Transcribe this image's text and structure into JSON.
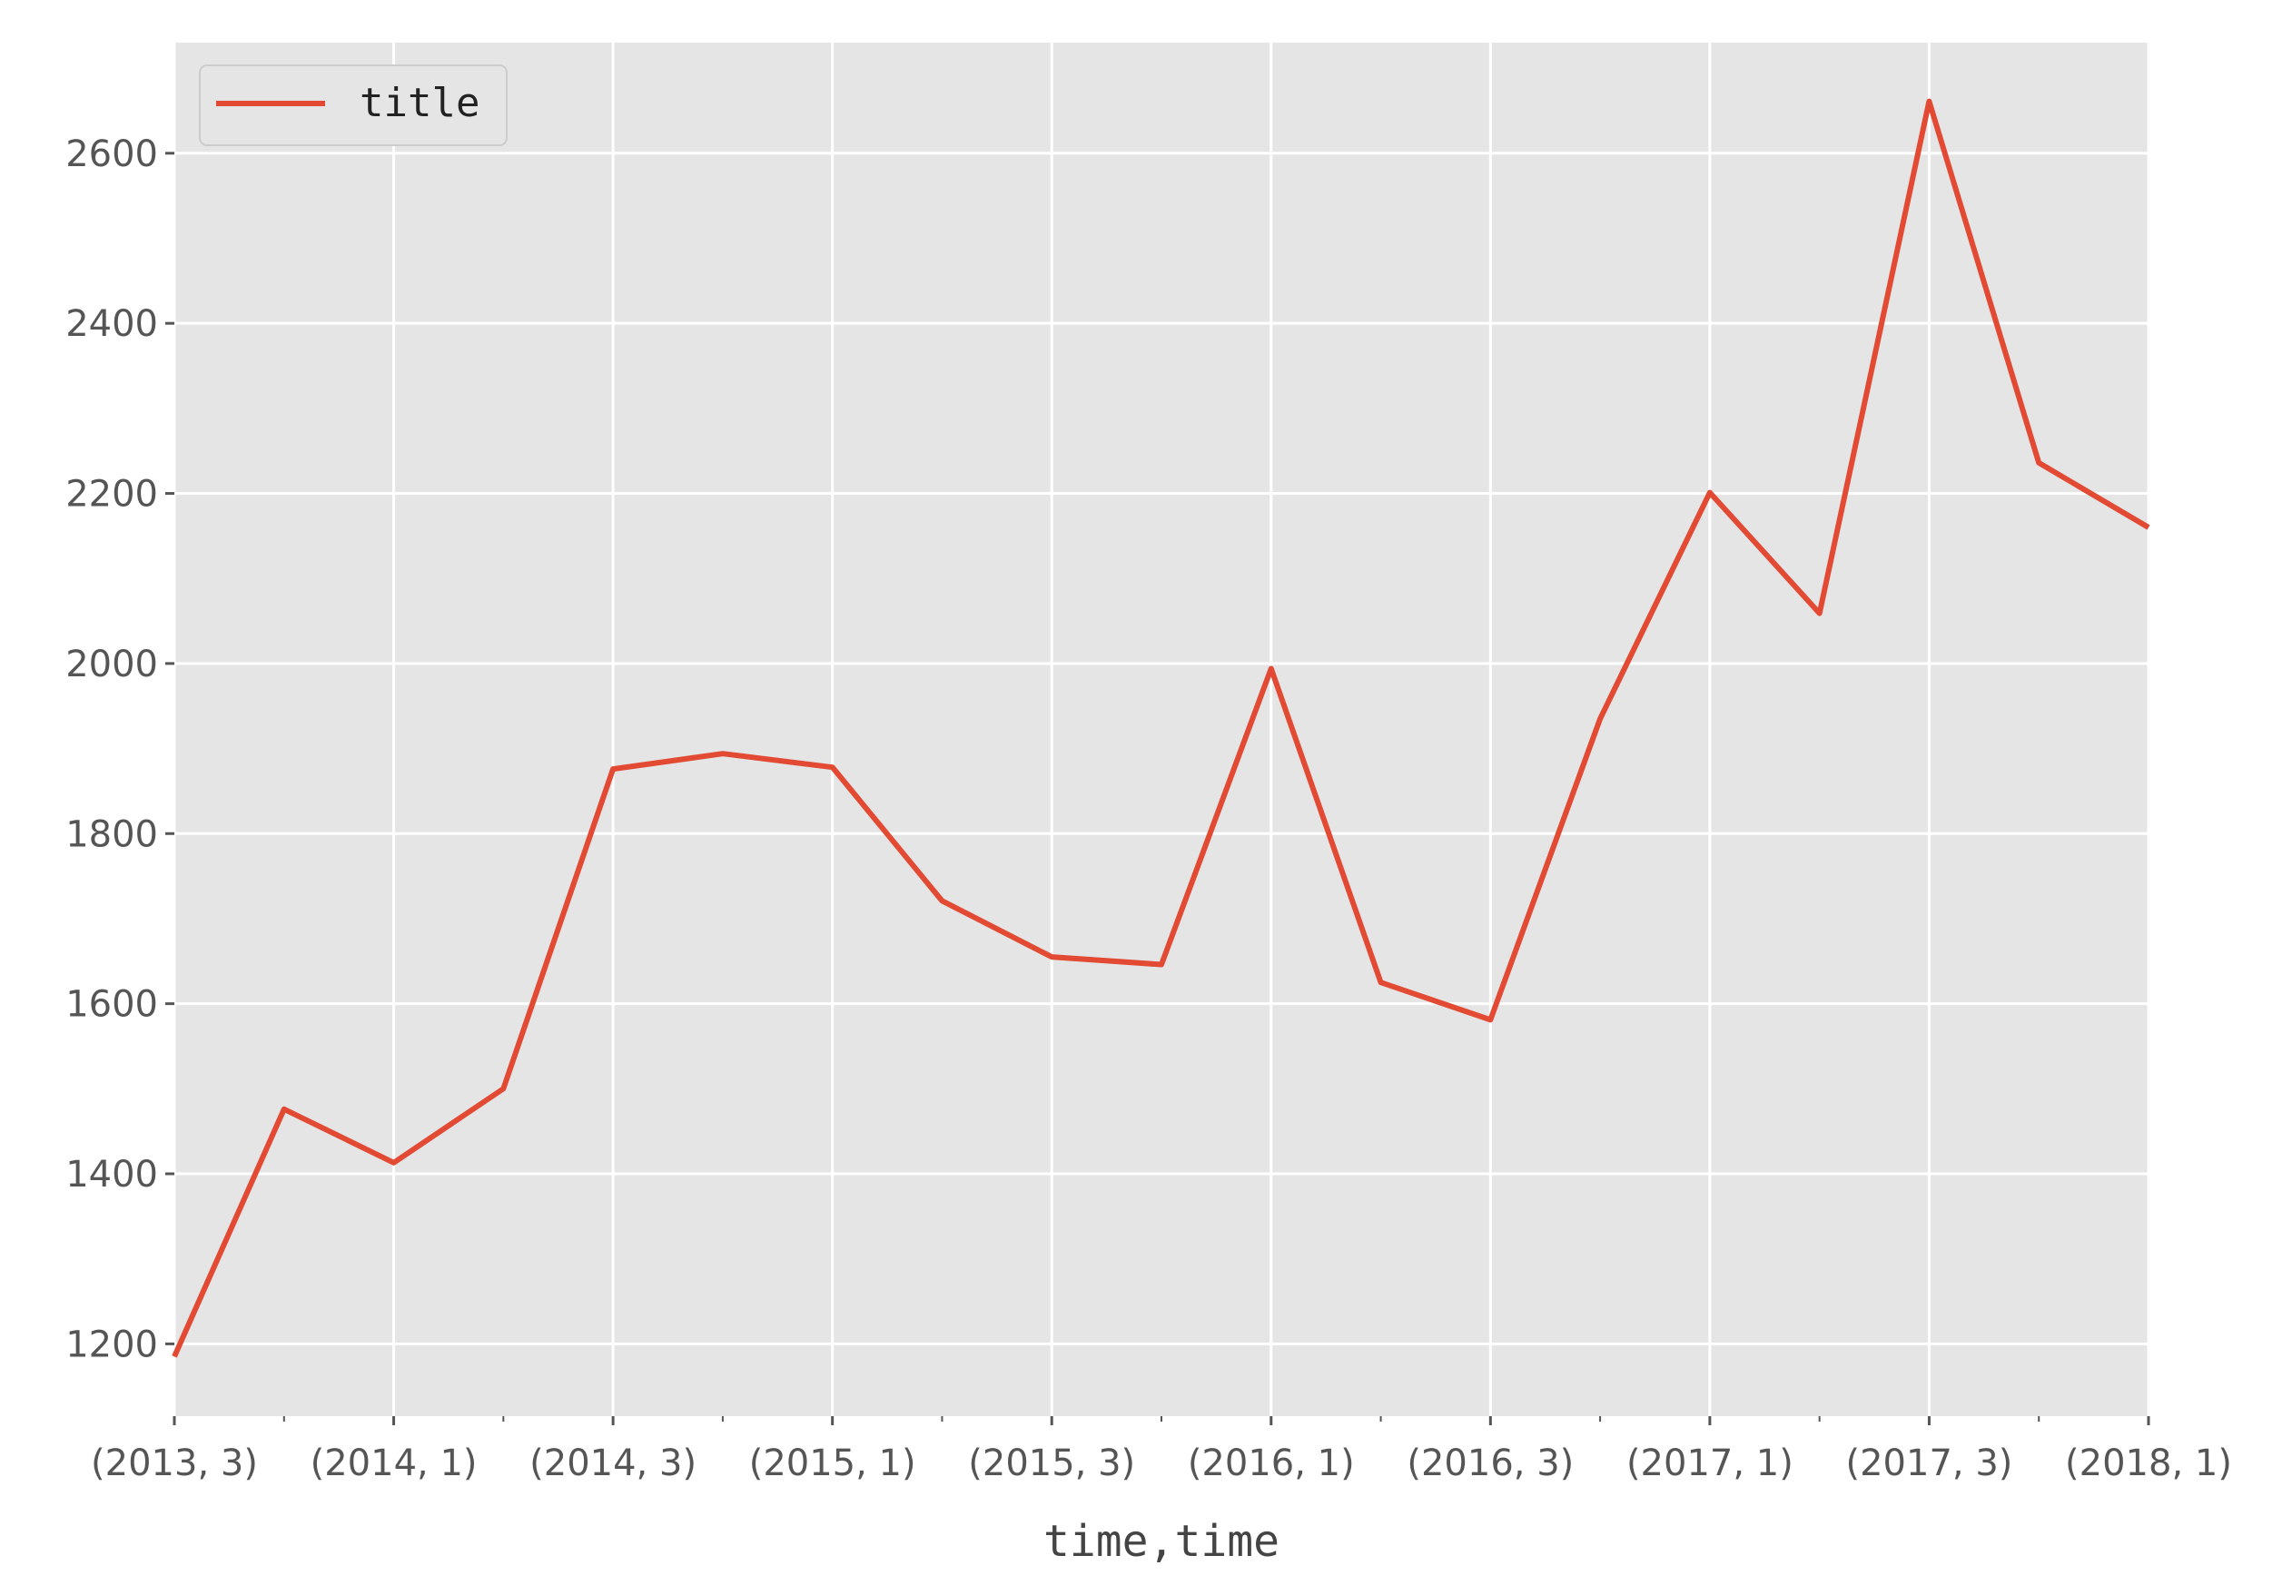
{
  "chart_data": {
    "type": "line",
    "title": "",
    "xlabel": "time,time",
    "ylabel": "",
    "x_tick_labels": [
      "(2013, 3)",
      "(2014, 1)",
      "(2014, 3)",
      "(2015, 1)",
      "(2015, 3)",
      "(2016, 1)",
      "(2016, 3)",
      "(2017, 1)",
      "(2017, 3)",
      "(2018, 1)"
    ],
    "y_ticks": [
      1200,
      1400,
      1600,
      1800,
      2000,
      2200,
      2400,
      2600
    ],
    "ylim": [
      1115,
      2730
    ],
    "grid": true,
    "legend_position": "top-left",
    "colors": {
      "line": "#E24A33",
      "plot_background": "#E5E5E5",
      "grid": "#FFFFFF",
      "tick": "#555555"
    },
    "series": [
      {
        "name": "title",
        "x": [
          "(2013, 3)",
          "(2013, 4)",
          "(2014, 1)",
          "(2014, 2)",
          "(2014, 3)",
          "(2014, 4)",
          "(2015, 1)",
          "(2015, 2)",
          "(2015, 3)",
          "(2015, 4)",
          "(2016, 1)",
          "(2016, 2)",
          "(2016, 3)",
          "(2016, 4)",
          "(2017, 1)",
          "(2017, 2)",
          "(2017, 3)",
          "(2017, 4)",
          "(2018, 1)"
        ],
        "values": [
          1185,
          1476,
          1413,
          1500,
          1876,
          1894,
          1878,
          1721,
          1655,
          1646,
          1994,
          1625,
          1581,
          1935,
          2201,
          2059,
          2661,
          2236,
          2160
        ]
      }
    ]
  }
}
